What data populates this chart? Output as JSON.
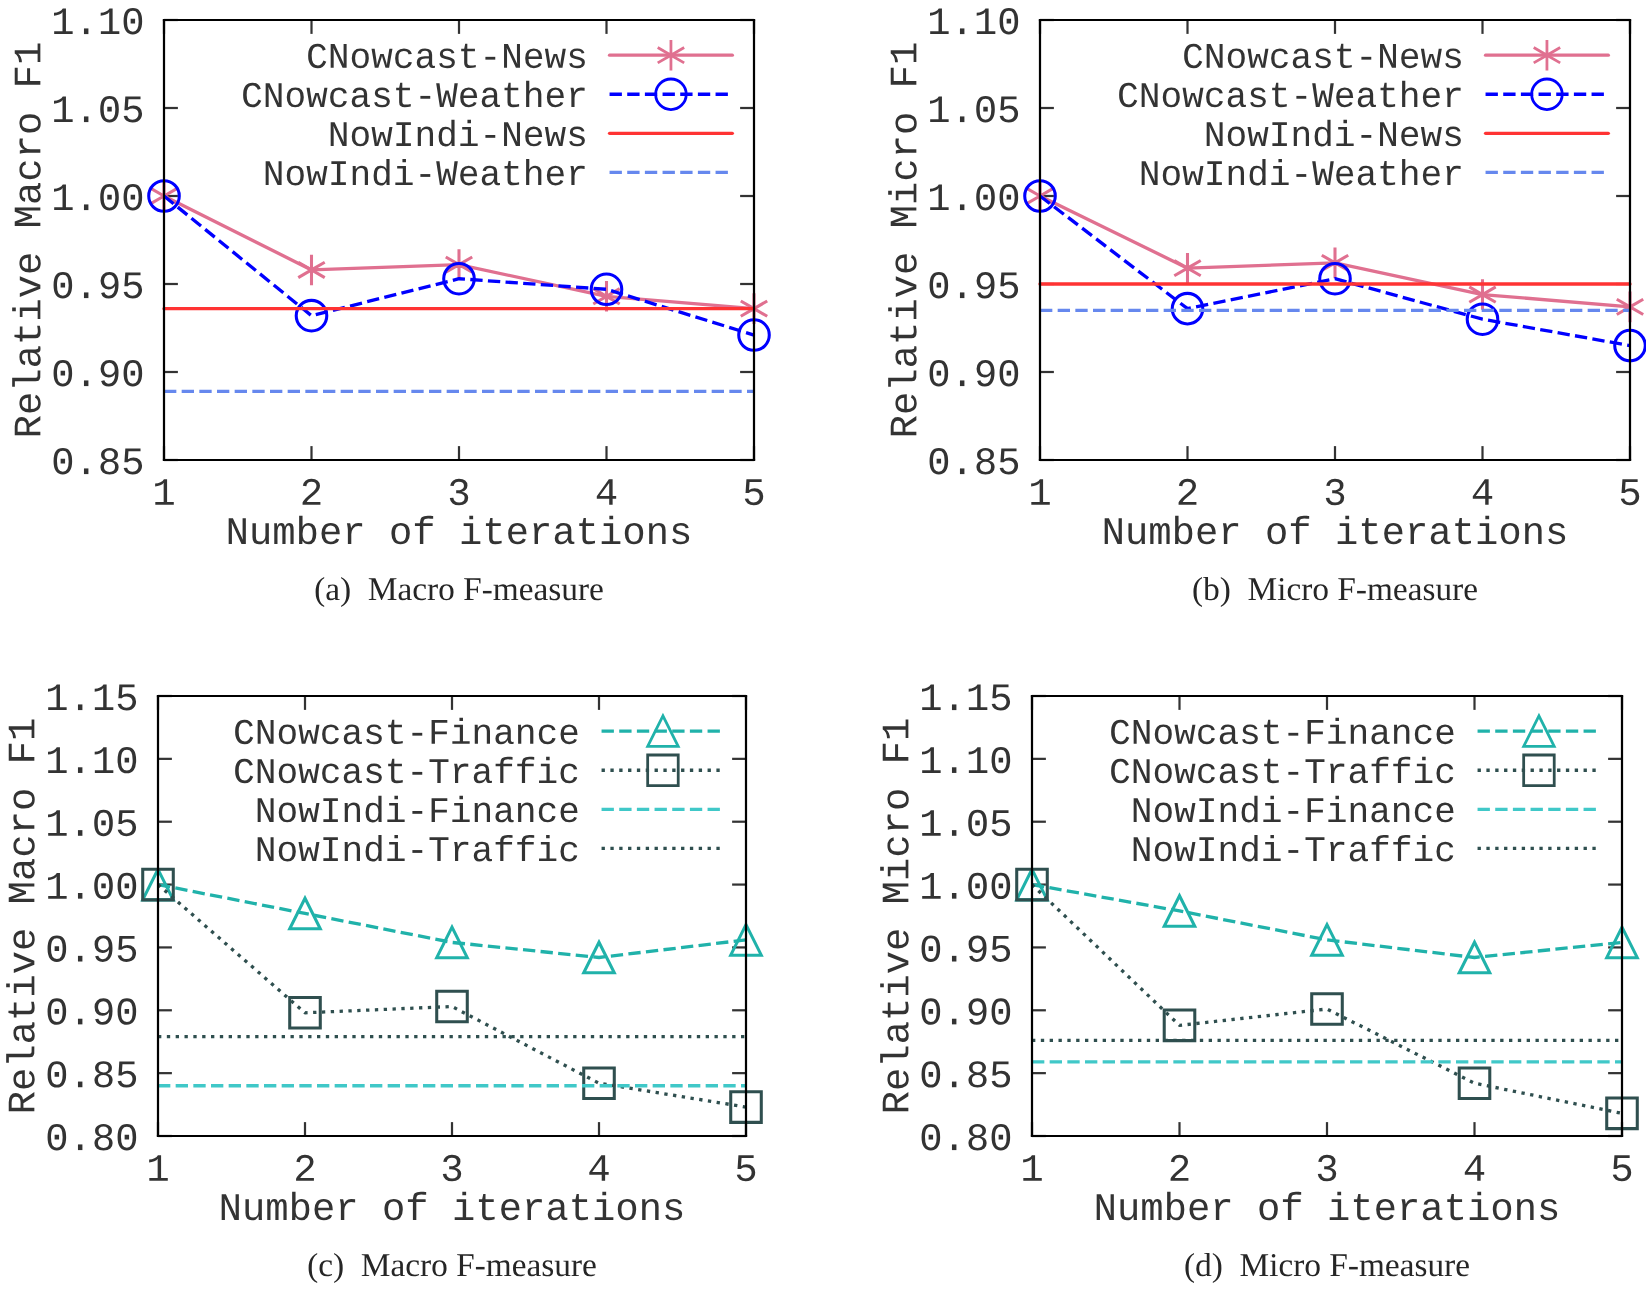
{
  "chart_data": [
    {
      "type": "line",
      "xlabel": "Number of iterations",
      "ylabel": "Relative Macro F1",
      "xlim": [
        1,
        5
      ],
      "xticks": [
        1,
        2,
        3,
        4,
        5
      ],
      "ylim": [
        0.85,
        1.1
      ],
      "yticks": [
        {
          "value": 0.85,
          "label": "0.85"
        },
        {
          "value": 0.9,
          "label": "0.90"
        },
        {
          "value": 0.95,
          "label": "0.95"
        },
        {
          "value": 1.0,
          "label": "1.00"
        },
        {
          "value": 1.05,
          "label": "1.05"
        },
        {
          "value": 1.1,
          "label": "1.10"
        }
      ],
      "legend": "top right",
      "grid": false,
      "annotations": [
        "(a)  Macro F-measure"
      ],
      "series": [
        {
          "name": "CNowcast-News",
          "color": "#e07090",
          "marker": "cross",
          "line_style": "solid",
          "x": [
            1,
            2,
            3,
            4,
            5
          ],
          "values": [
            1.0,
            0.958,
            0.961,
            0.943,
            0.936
          ]
        },
        {
          "name": "CNowcast-Weather",
          "color": "#0000ff",
          "marker": "circle",
          "line_style": "dashed",
          "x": [
            1,
            2,
            3,
            4,
            5
          ],
          "values": [
            1.0,
            0.932,
            0.953,
            0.947,
            0.921
          ]
        },
        {
          "name": "NowIndi-News",
          "color": "#ff3333",
          "marker": "none",
          "line_style": "solid",
          "x": [
            1,
            5
          ],
          "values": [
            0.936,
            0.936
          ]
        },
        {
          "name": "NowIndi-Weather",
          "color": "#6688ee",
          "marker": "none",
          "line_style": "dashed",
          "x": [
            1,
            5
          ],
          "values": [
            0.889,
            0.889
          ]
        }
      ]
    },
    {
      "type": "line",
      "xlabel": "Number of iterations",
      "ylabel": "Relative Micro F1",
      "xlim": [
        1,
        5
      ],
      "xticks": [
        1,
        2,
        3,
        4,
        5
      ],
      "ylim": [
        0.85,
        1.1
      ],
      "yticks": [
        {
          "value": 0.85,
          "label": "0.85"
        },
        {
          "value": 0.9,
          "label": "0.90"
        },
        {
          "value": 0.95,
          "label": "0.95"
        },
        {
          "value": 1.0,
          "label": "1.00"
        },
        {
          "value": 1.05,
          "label": "1.05"
        },
        {
          "value": 1.1,
          "label": "1.10"
        }
      ],
      "legend": "top right",
      "grid": false,
      "annotations": [
        "(b)  Micro F-measure"
      ],
      "series": [
        {
          "name": "CNowcast-News",
          "color": "#e07090",
          "marker": "cross",
          "line_style": "solid",
          "x": [
            1,
            2,
            3,
            4,
            5
          ],
          "values": [
            1.0,
            0.959,
            0.962,
            0.944,
            0.937
          ]
        },
        {
          "name": "CNowcast-Weather",
          "color": "#0000ff",
          "marker": "circle",
          "line_style": "dashed",
          "x": [
            1,
            2,
            3,
            4,
            5
          ],
          "values": [
            1.0,
            0.936,
            0.953,
            0.93,
            0.915
          ]
        },
        {
          "name": "NowIndi-News",
          "color": "#ff3333",
          "marker": "none",
          "line_style": "solid",
          "x": [
            1,
            5
          ],
          "values": [
            0.95,
            0.95
          ]
        },
        {
          "name": "NowIndi-Weather",
          "color": "#6688ee",
          "marker": "none",
          "line_style": "dashed",
          "x": [
            1,
            5
          ],
          "values": [
            0.935,
            0.935
          ]
        }
      ]
    },
    {
      "type": "line",
      "xlabel": "Number of iterations",
      "ylabel": "Relative Macro F1",
      "xlim": [
        1,
        5
      ],
      "xticks": [
        1,
        2,
        3,
        4,
        5
      ],
      "ylim": [
        0.8,
        1.15
      ],
      "yticks": [
        {
          "value": 0.8,
          "label": "0.80"
        },
        {
          "value": 0.85,
          "label": "0.85"
        },
        {
          "value": 0.9,
          "label": "0.90"
        },
        {
          "value": 0.95,
          "label": "0.95"
        },
        {
          "value": 1.0,
          "label": "1.00"
        },
        {
          "value": 1.05,
          "label": "1.05"
        },
        {
          "value": 1.1,
          "label": "1.10"
        },
        {
          "value": 1.15,
          "label": "1.15"
        }
      ],
      "legend": "top right",
      "grid": false,
      "annotations": [
        "(c)  Macro F-measure"
      ],
      "series": [
        {
          "name": "CNowcast-Finance",
          "color": "#20b2aa",
          "marker": "triangle",
          "line_style": "dashed",
          "x": [
            1,
            2,
            3,
            4,
            5
          ],
          "values": [
            1.0,
            0.977,
            0.954,
            0.942,
            0.956
          ]
        },
        {
          "name": "CNowcast-Traffic",
          "color": "#2f4f4f",
          "marker": "square",
          "line_style": "dotted",
          "x": [
            1,
            2,
            3,
            4,
            5
          ],
          "values": [
            1.0,
            0.898,
            0.903,
            0.842,
            0.823
          ]
        },
        {
          "name": "NowIndi-Finance",
          "color": "#40c8c8",
          "marker": "none",
          "line_style": "dashed",
          "x": [
            1,
            5
          ],
          "values": [
            0.84,
            0.84
          ]
        },
        {
          "name": "NowIndi-Traffic",
          "color": "#2f4f4f",
          "marker": "none",
          "line_style": "dotted",
          "x": [
            1,
            5
          ],
          "values": [
            0.879,
            0.879
          ]
        }
      ]
    },
    {
      "type": "line",
      "xlabel": "Number of iterations",
      "ylabel": "Relative Micro F1",
      "xlim": [
        1,
        5
      ],
      "xticks": [
        1,
        2,
        3,
        4,
        5
      ],
      "ylim": [
        0.8,
        1.15
      ],
      "yticks": [
        {
          "value": 0.8,
          "label": "0.80"
        },
        {
          "value": 0.85,
          "label": "0.85"
        },
        {
          "value": 0.9,
          "label": "0.90"
        },
        {
          "value": 0.95,
          "label": "0.95"
        },
        {
          "value": 1.0,
          "label": "1.00"
        },
        {
          "value": 1.05,
          "label": "1.05"
        },
        {
          "value": 1.1,
          "label": "1.10"
        },
        {
          "value": 1.15,
          "label": "1.15"
        }
      ],
      "legend": "top right",
      "grid": false,
      "annotations": [
        "(d)  Micro F-measure"
      ],
      "series": [
        {
          "name": "CNowcast-Finance",
          "color": "#20b2aa",
          "marker": "triangle",
          "line_style": "dashed",
          "x": [
            1,
            2,
            3,
            4,
            5
          ],
          "values": [
            1.0,
            0.979,
            0.956,
            0.942,
            0.954
          ]
        },
        {
          "name": "CNowcast-Traffic",
          "color": "#2f4f4f",
          "marker": "square",
          "line_style": "dotted",
          "x": [
            1,
            2,
            3,
            4,
            5
          ],
          "values": [
            1.0,
            0.888,
            0.901,
            0.842,
            0.818
          ]
        },
        {
          "name": "NowIndi-Finance",
          "color": "#40c8c8",
          "marker": "none",
          "line_style": "dashed",
          "x": [
            1,
            5
          ],
          "values": [
            0.859,
            0.859
          ]
        },
        {
          "name": "NowIndi-Traffic",
          "color": "#2f4f4f",
          "marker": "none",
          "line_style": "dotted",
          "x": [
            1,
            5
          ],
          "values": [
            0.876,
            0.876
          ]
        }
      ]
    }
  ]
}
